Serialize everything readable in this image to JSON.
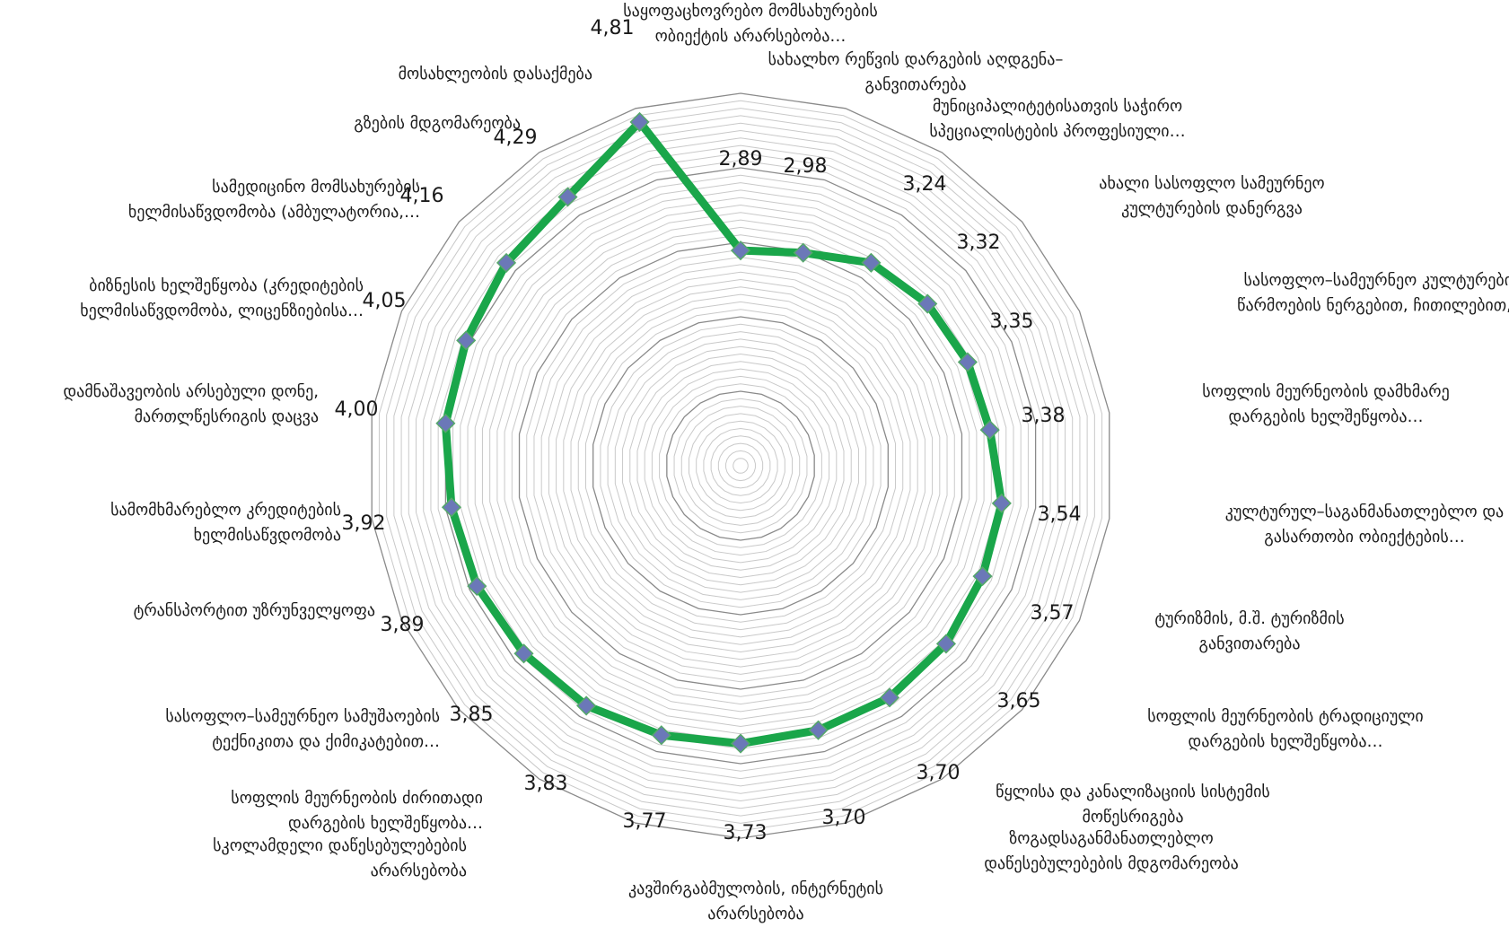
{
  "chart_data": {
    "type": "radar",
    "categories": [
      [
        "სახალხო რეწვის დარგების აღდგენა–",
        "განვითარება"
      ],
      [
        "მუნიციპალიტეტისათვის საჭირო",
        "სპეციალისტების პროფესიული…"
      ],
      [
        "ახალი სასოფლო სამეურნეო",
        "კულტურების დანერგვა"
      ],
      [
        "სასოფლო–სამეურნეო კულტურების",
        "წარმოების ნერგებით, ჩითილებით,…"
      ],
      [
        "სოფლის მეურნეობის დამხმარე",
        "დარგების ხელშეწყობა…"
      ],
      [
        "კულტურულ–საგანმანათლებლო და",
        "გასართობი ობიექტების…"
      ],
      [
        "ტურიზმის, მ.შ. ტურიზმის",
        "განვითარება"
      ],
      [
        "სოფლის მეურნეობის ტრადიციული",
        "დარგების ხელშეწყობა…"
      ],
      [
        "წყლისა და კანალიზაციის სისტემის",
        "მოწესრიგება"
      ],
      [
        "ზოგადსაგანმანათლებლო",
        "დაწესებულებების მდგომარეობა"
      ],
      [
        "კავშირგაბმულობის, ინტერნეტის",
        "არარსებობა"
      ],
      [
        "სკოლამდელი დაწესებულებების",
        "არარსებობა"
      ],
      [
        "სოფლის მეურნეობის ძირითადი",
        "დარგების ხელშეწყობა…"
      ],
      [
        "სასოფლო–სამეურნეო სამუშაოების",
        "ტექნიკითა და ქიმიკატებით…"
      ],
      [
        "ტრანსპორტით უზრუნველყოფა"
      ],
      [
        "სამომხმარებლო კრედიტების",
        "ხელმისაწვდომობა"
      ],
      [
        "დამნაშავეობის არსებული დონე,",
        "მართლწესრიგის დაცვა"
      ],
      [
        "ბიზნესის ხელშეწყობა (კრედიტების",
        "ხელმისაწვდომობა, ლიცენზიებისა…"
      ],
      [
        "სამედიცინო მომსახურების",
        "ხელმისაწვდომობა (ამბულატორია,…"
      ],
      [
        "გზების მდგომარეობა"
      ],
      [
        "მოსახლეობის დასაქმება"
      ],
      [
        "საყოფაცხოვრებო მომსახურების",
        "ობიექტის არარსებობა…"
      ]
    ],
    "values": [
      2.89,
      2.98,
      3.24,
      3.32,
      3.35,
      3.38,
      3.54,
      3.57,
      3.65,
      3.7,
      3.7,
      3.73,
      3.77,
      3.83,
      3.85,
      3.89,
      3.92,
      4.0,
      4.05,
      4.16,
      4.29,
      4.81
    ],
    "value_labels": [
      "2,89",
      "2,98",
      "3,24",
      "3,32",
      "3,35",
      "3,38",
      "3,54",
      "3,57",
      "3,65",
      "3,70",
      "3,70",
      "3,73",
      "3,77",
      "3,83",
      "3,85",
      "3,89",
      "3,92",
      "4,00",
      "4,05",
      "4,16",
      "4,29",
      "4,81"
    ],
    "rlim": [
      0,
      5
    ],
    "grid": true,
    "major_ring_step": 1,
    "minor_ring_step": 0.1,
    "legend": "none",
    "colors": {
      "line": "#1aa64a",
      "marker": "#6b78b8",
      "grid_major": "#8a8a8a",
      "grid_minor": "#c9c9c9"
    }
  }
}
